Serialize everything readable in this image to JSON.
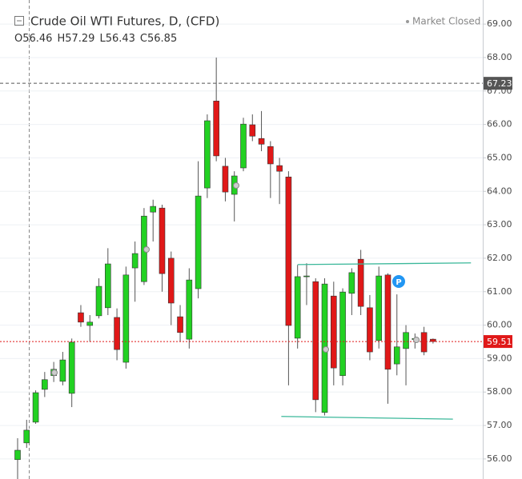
{
  "chart_data": {
    "type": "candlestick",
    "title": "Crude Oil WTI Futures, D, (CFD)",
    "status": "Market Closed",
    "ohlc_legend": [
      {
        "label": "O",
        "value": 56.46
      },
      {
        "label": "H",
        "value": 57.29
      },
      {
        "label": "L",
        "value": 56.43
      },
      {
        "label": "C",
        "value": 56.85
      }
    ],
    "open": [
      55.98,
      56.48,
      57.1,
      58.08,
      58.49,
      58.32,
      57.96,
      60.37,
      59.99,
      60.28,
      60.52,
      60.23,
      58.89,
      61.71,
      61.3,
      63.38,
      63.5,
      62.0,
      60.25,
      59.58,
      61.09,
      64.1,
      66.7,
      64.75,
      63.91,
      64.7,
      65.99,
      65.58,
      65.34,
      64.77,
      64.43,
      59.61,
      61.45,
      61.3,
      57.39,
      60.87,
      58.49,
      60.95,
      61.97,
      60.52,
      59.54,
      61.5,
      58.84,
      59.3,
      59.57,
      59.78,
      59.58
    ],
    "high": [
      56.62,
      57.17,
      58.05,
      58.6,
      58.9,
      59.2,
      59.6,
      60.6,
      60.3,
      61.4,
      62.3,
      60.5,
      61.75,
      62.5,
      63.5,
      63.75,
      63.6,
      62.2,
      60.6,
      61.7,
      64.9,
      66.3,
      68.0,
      65.0,
      64.6,
      66.2,
      66.3,
      66.4,
      65.5,
      65.0,
      64.6,
      61.8,
      61.85,
      61.4,
      61.4,
      61.3,
      61.1,
      61.7,
      62.25,
      60.9,
      61.75,
      61.55,
      60.92,
      60.0,
      59.75,
      59.95,
      59.6
    ],
    "low": [
      55.4,
      56.33,
      57.05,
      57.85,
      58.3,
      58.2,
      57.55,
      59.95,
      59.5,
      60.2,
      60.3,
      58.95,
      58.7,
      60.7,
      61.2,
      62.5,
      61.0,
      60.0,
      59.5,
      59.3,
      60.8,
      63.8,
      64.9,
      63.7,
      63.1,
      64.6,
      65.5,
      65.2,
      63.8,
      63.62,
      58.2,
      59.3,
      60.6,
      57.4,
      57.3,
      58.2,
      58.2,
      60.3,
      60.3,
      58.95,
      59.3,
      57.65,
      58.5,
      58.2,
      59.3,
      59.1,
      59.45
    ],
    "close": [
      56.26,
      56.86,
      57.98,
      58.37,
      58.68,
      58.96,
      59.49,
      60.09,
      60.09,
      61.16,
      61.83,
      59.27,
      61.5,
      62.14,
      63.26,
      63.55,
      61.54,
      60.66,
      59.78,
      61.35,
      63.86,
      66.11,
      65.06,
      63.98,
      64.46,
      66.01,
      65.65,
      65.41,
      64.82,
      64.6,
      59.99,
      61.45,
      61.47,
      57.77,
      61.23,
      58.72,
      60.99,
      61.57,
      60.56,
      59.2,
      61.47,
      58.68,
      59.35,
      59.78,
      59.6,
      59.2,
      59.51
    ],
    "up_color": "#22d122",
    "down_color": "#e01818",
    "ylim": [
      55.4,
      69.72
    ],
    "yticks": [
      {
        "value": 56,
        "label": "56.00"
      },
      {
        "value": 57,
        "label": "57.00"
      },
      {
        "value": 58,
        "label": "58.00"
      },
      {
        "value": 59,
        "label": "59.00"
      },
      {
        "value": 60,
        "label": "60.00"
      },
      {
        "value": 61,
        "label": "61.00"
      },
      {
        "value": 62,
        "label": "62.00"
      },
      {
        "value": 63,
        "label": "63.00"
      },
      {
        "value": 64,
        "label": "64.00"
      },
      {
        "value": 65,
        "label": "65.00"
      },
      {
        "value": 66,
        "label": "66.00"
      },
      {
        "value": 67,
        "label": "67.00"
      },
      {
        "value": 68,
        "label": "68.00"
      },
      {
        "value": 69,
        "label": "69.00"
      }
    ],
    "grid": true,
    "price_lines": [
      {
        "value": 67.23,
        "color": "#555555"
      },
      {
        "value": 59.51,
        "color": "#e01818"
      }
    ],
    "trend_lines": [
      {
        "x": [
          31,
          50.2
        ],
        "y": [
          61.81,
          61.86
        ],
        "color": "#3bb89a"
      },
      {
        "x": [
          29.2,
          48.2
        ],
        "y": [
          57.27,
          57.19
        ],
        "color": "#3bb89a"
      }
    ],
    "marker_label": "P"
  }
}
